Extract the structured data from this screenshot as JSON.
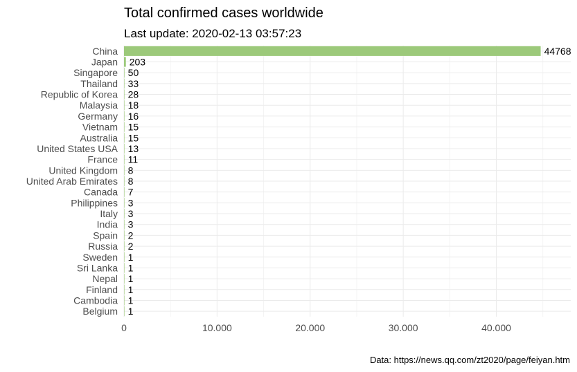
{
  "chart_data": {
    "type": "bar",
    "orientation": "horizontal",
    "title": "Total confirmed cases worldwide",
    "subtitle": "Last update: 2020-02-13 03:57:23",
    "caption": "Data: https://news.qq.com/zt2020/page/feiyan.htm",
    "xlabel": "",
    "ylabel": "",
    "xlim": [
      0,
      48000
    ],
    "x_ticks": [
      0,
      10000,
      20000,
      30000,
      40000
    ],
    "x_tick_labels": [
      "0",
      "10.000",
      "20.000",
      "30.000",
      "40.000"
    ],
    "grid": true,
    "bar_color": "#9cc97a",
    "categories": [
      "China",
      "Japan",
      "Singapore",
      "Thailand",
      "Republic of Korea",
      "Malaysia",
      "Germany",
      "Vietnam",
      "Australia",
      "United States USA",
      "France",
      "United Kingdom",
      "United Arab Emirates",
      "Canada",
      "Philippines",
      "Italy",
      "India",
      "Spain",
      "Russia",
      "Sweden",
      "Sri Lanka",
      "Nepal",
      "Finland",
      "Cambodia",
      "Belgium"
    ],
    "values": [
      44768,
      203,
      50,
      33,
      28,
      18,
      16,
      15,
      15,
      13,
      11,
      8,
      8,
      7,
      3,
      3,
      3,
      2,
      2,
      1,
      1,
      1,
      1,
      1,
      1
    ]
  }
}
